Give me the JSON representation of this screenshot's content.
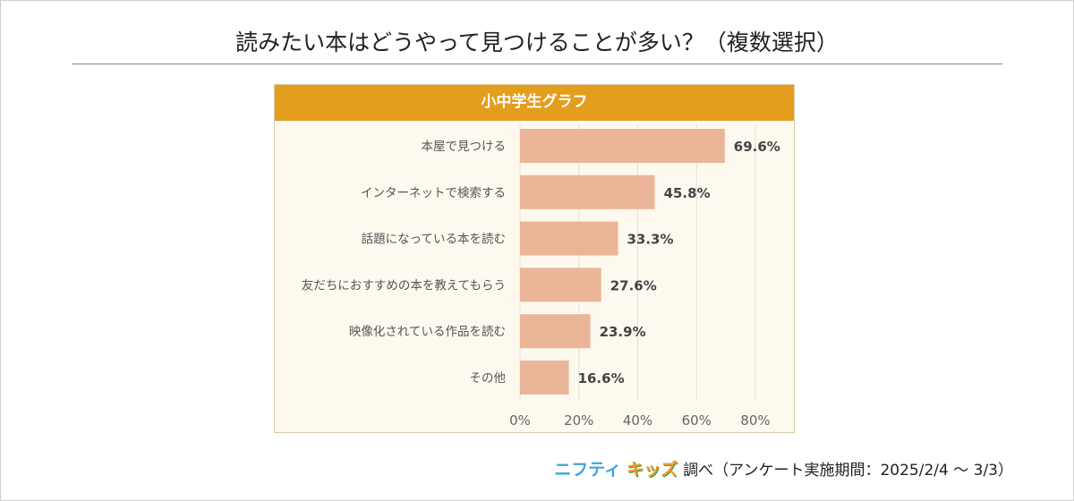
{
  "title": "読みたい本はどうやって見つけることが多い？（複数選択）",
  "chart_data": {
    "type": "bar",
    "title": "小中学生グラフ",
    "categories": [
      "本屋で見つける",
      "インターネットで検索する",
      "話題になっている本を読む",
      "友だちにおすすめの本を教えてもらう",
      "映像化されている作品を読む",
      "その他"
    ],
    "values": [
      69.6,
      45.8,
      33.3,
      27.6,
      23.9,
      16.6
    ],
    "value_labels": [
      "69.6%",
      "45.8%",
      "33.3%",
      "27.6%",
      "23.9%",
      "16.6%"
    ],
    "xticks": [
      "0%",
      "20%",
      "40%",
      "60%",
      "80%"
    ],
    "xlim": [
      0,
      80
    ],
    "grid": true,
    "bar_color": "#ebb597",
    "header_color": "#e39e1d"
  },
  "footer": {
    "logo_part1": "ニフティ",
    "logo_part2": "キッズ",
    "text": "調べ（アンケート実施期間：2025/2/4 ～ 3/3）"
  }
}
